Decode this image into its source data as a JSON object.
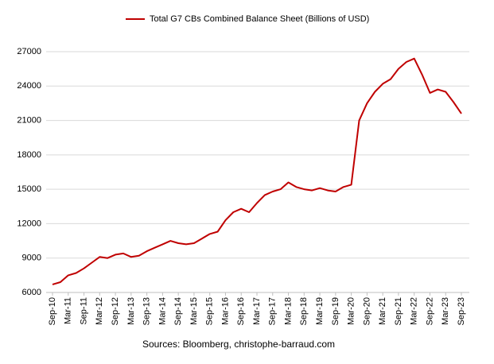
{
  "chart_data": {
    "type": "line",
    "source": "Sources: Bloomberg, christophe-barraud.com",
    "categories": [
      "Sep-10",
      null,
      "Mar-11",
      null,
      "Sep-11",
      null,
      "Mar-12",
      null,
      "Sep-12",
      null,
      "Mar-13",
      null,
      "Sep-13",
      null,
      "Mar-14",
      null,
      "Sep-14",
      null,
      "Mar-15",
      null,
      "Sep-15",
      null,
      "Mar-16",
      null,
      "Sep-16",
      null,
      "Mar-17",
      null,
      "Sep-17",
      null,
      "Mar-18",
      null,
      "Sep-18",
      null,
      "Mar-19",
      null,
      "Sep-19",
      null,
      "Mar-20",
      null,
      "Sep-20",
      null,
      "Mar-21",
      null,
      "Sep-21",
      null,
      "Mar-22",
      null,
      "Sep-22",
      null,
      "Mar-23",
      null,
      "Sep-23"
    ],
    "series": [
      {
        "name": "Total G7 CBs Combined Balance Sheet (Billions of USD)",
        "color": "#c00000",
        "values": [
          6700,
          6900,
          7500,
          7700,
          8100,
          8600,
          9100,
          9000,
          9300,
          9400,
          9100,
          9200,
          9600,
          9900,
          10200,
          10500,
          10300,
          10200,
          10300,
          10700,
          11100,
          11300,
          12300,
          13000,
          13300,
          13000,
          13800,
          14500,
          14800,
          15000,
          15600,
          15200,
          15000,
          14900,
          15100,
          14900,
          14800,
          15200,
          15400,
          21000,
          22500,
          23500,
          24200,
          24600,
          25500,
          26100,
          26400,
          25000,
          23400,
          23700,
          23500,
          22600,
          21600
        ]
      }
    ],
    "ylim": [
      6000,
      27000
    ],
    "yticks": [
      6000,
      9000,
      12000,
      15000,
      18000,
      21000,
      24000,
      27000
    ],
    "grid": true,
    "legend": "top"
  }
}
